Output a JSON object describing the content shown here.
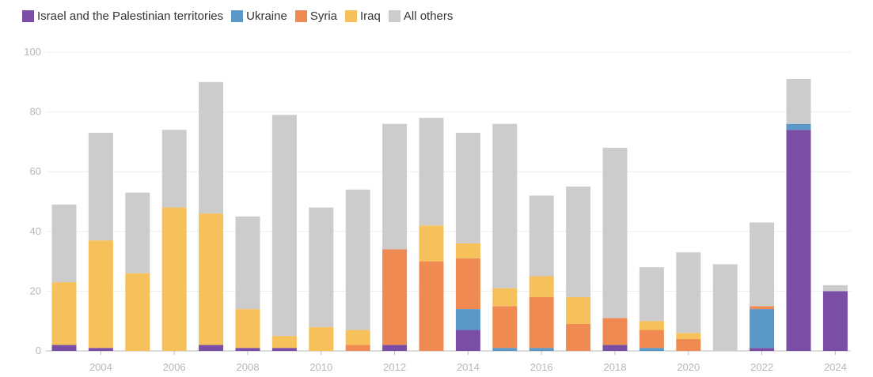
{
  "chart_data": {
    "type": "bar",
    "stacked": true,
    "title": "",
    "xlabel": "",
    "ylabel": "",
    "ylim": [
      0,
      100
    ],
    "y_ticks": [
      0,
      20,
      40,
      60,
      80,
      100
    ],
    "legend_position": "top-left",
    "grid": true,
    "categories": [
      2003,
      2004,
      2005,
      2006,
      2007,
      2008,
      2009,
      2010,
      2011,
      2012,
      2013,
      2014,
      2015,
      2016,
      2017,
      2018,
      2019,
      2020,
      2021,
      2022,
      2023,
      2024
    ],
    "x_tick_labels": [
      "2004",
      "2006",
      "2008",
      "2010",
      "2012",
      "2014",
      "2016",
      "2018",
      "2020",
      "2022",
      "2024"
    ],
    "series": [
      {
        "name": "Israel and the Palestinian territories",
        "color": "#7b4ea6",
        "values": [
          2,
          1,
          0,
          0,
          2,
          1,
          1,
          0,
          0,
          2,
          0,
          7,
          0,
          0,
          0,
          2,
          0,
          0,
          0,
          1,
          74,
          20
        ]
      },
      {
        "name": "Ukraine",
        "color": "#5a98c8",
        "values": [
          0,
          0,
          0,
          0,
          0,
          0,
          0,
          0,
          0,
          0,
          0,
          7,
          1,
          1,
          0,
          0,
          1,
          0,
          0,
          13,
          2,
          0
        ]
      },
      {
        "name": "Syria",
        "color": "#ef8a52",
        "values": [
          0,
          0,
          0,
          0,
          0,
          0,
          0,
          0,
          2,
          32,
          30,
          17,
          14,
          17,
          9,
          9,
          6,
          4,
          0,
          1,
          0,
          0
        ]
      },
      {
        "name": "Iraq",
        "color": "#f6c05a",
        "values": [
          21,
          36,
          26,
          48,
          44,
          13,
          4,
          8,
          5,
          0,
          12,
          5,
          6,
          7,
          9,
          0,
          3,
          2,
          0,
          0,
          0,
          0
        ]
      },
      {
        "name": "All others",
        "color": "#cccccc",
        "values": [
          26,
          36,
          27,
          26,
          44,
          31,
          74,
          40,
          47,
          42,
          36,
          37,
          55,
          27,
          37,
          57,
          18,
          27,
          29,
          28,
          15,
          2
        ]
      }
    ]
  }
}
